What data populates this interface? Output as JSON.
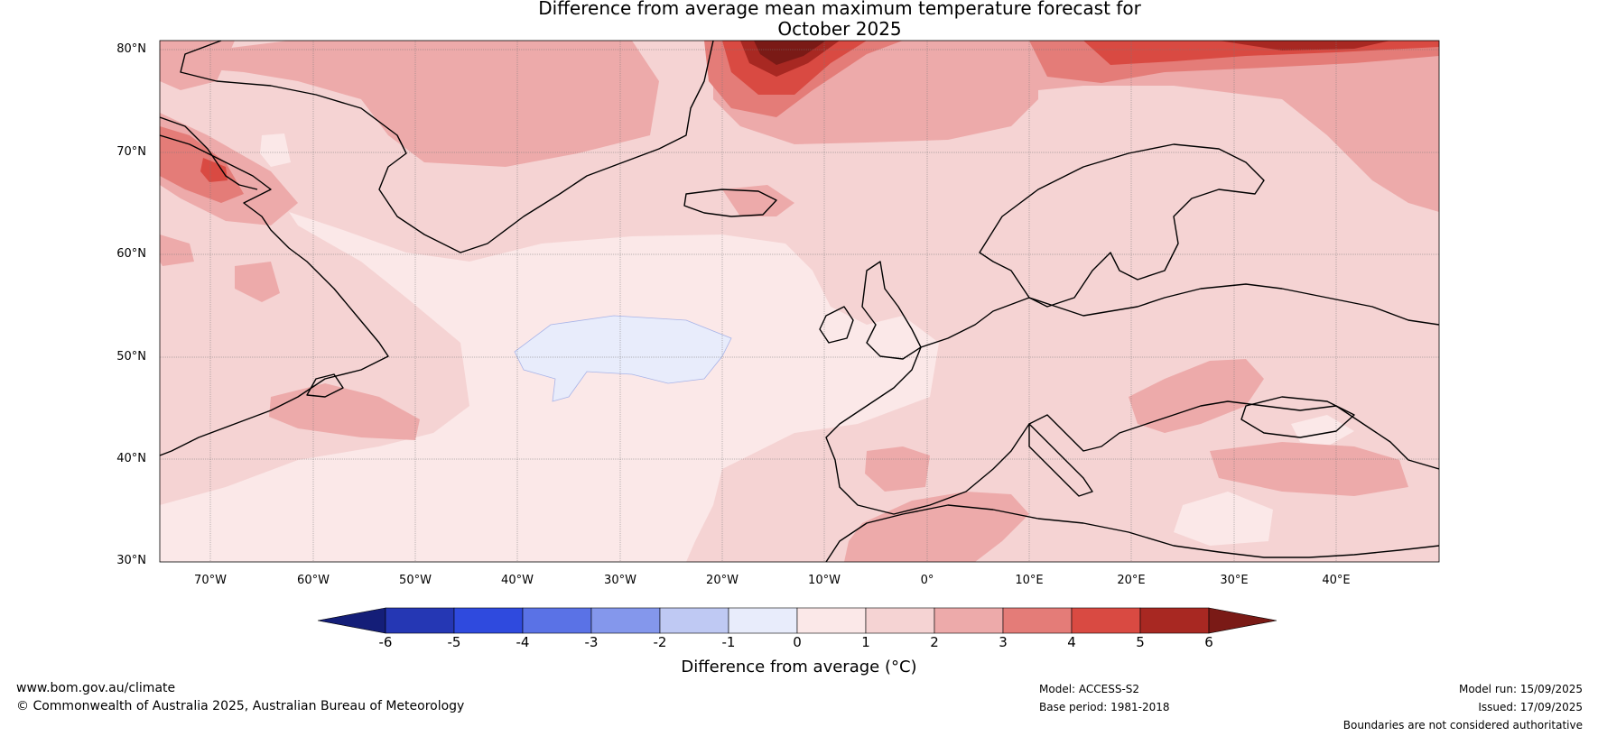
{
  "title": {
    "line1": "Difference from average mean maximum temperature forecast for",
    "line2": "October 2025"
  },
  "map": {
    "lat_labels": [
      "80°N",
      "70°N",
      "60°N",
      "50°N",
      "40°N",
      "30°N"
    ],
    "lon_labels": [
      "70°W",
      "60°W",
      "50°W",
      "40°W",
      "30°W",
      "20°W",
      "10°W",
      "0°",
      "10°E",
      "20°E",
      "30°E",
      "40°E"
    ],
    "lat_range": [
      30,
      81
    ],
    "lon_range": [
      -75,
      50
    ]
  },
  "colorbar": {
    "tick_labels": [
      "-6",
      "-5",
      "-4",
      "-3",
      "-2",
      "-1",
      "0",
      "1",
      "2",
      "3",
      "4",
      "5",
      "6"
    ],
    "colors": [
      "#141e78",
      "#2537b4",
      "#2f4ade",
      "#5a72e6",
      "#8497ec",
      "#bfc9f3",
      "#e8ecfb",
      "#fbe8e8",
      "#f5d3d3",
      "#edaaaa",
      "#e47c78",
      "#d94a42",
      "#a82822",
      "#7a1a16"
    ],
    "label": "Difference from average (°C)"
  },
  "footer": {
    "website": "www.bom.gov.au/climate",
    "copyright": "© Commonwealth of Australia 2025, Australian Bureau of Meteorology",
    "model": "Model: ACCESS-S2",
    "base_period": "Base period: 1981-2018",
    "model_run": "Model run: 15/09/2025",
    "issued": "Issued: 17/09/2025",
    "disclaimer": "Boundaries are not considered authoritative"
  }
}
